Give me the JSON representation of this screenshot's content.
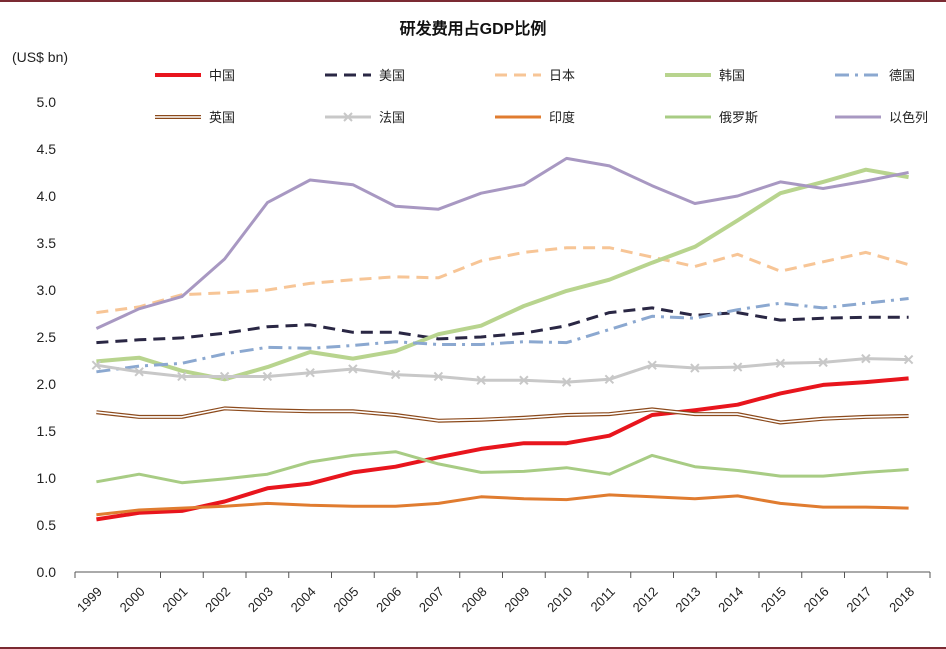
{
  "chart_data": {
    "type": "line",
    "title": "研发费用占GDP比例",
    "ylabel": "(US$ bn)",
    "xlabel": "",
    "ylim": [
      0,
      5
    ],
    "yticks": [
      "0.0",
      "0.5",
      "1.0",
      "1.5",
      "2.0",
      "2.5",
      "3.0",
      "3.5",
      "4.0",
      "4.5",
      "5.0"
    ],
    "categories": [
      "1999",
      "2000",
      "2001",
      "2002",
      "2003",
      "2004",
      "2005",
      "2006",
      "2007",
      "2008",
      "2009",
      "2010",
      "2011",
      "2012",
      "2013",
      "2014",
      "2015",
      "2016",
      "2017",
      "2018"
    ],
    "legend_position": "top",
    "series": [
      {
        "name": "中国",
        "color": "#e8151d",
        "style": "solid-thick",
        "values": [
          0.56,
          0.63,
          0.65,
          0.75,
          0.89,
          0.94,
          1.06,
          1.12,
          1.22,
          1.31,
          1.37,
          1.37,
          1.45,
          1.67,
          1.72,
          1.78,
          1.9,
          1.99,
          2.02,
          2.06
        ]
      },
      {
        "name": "美国",
        "color": "#2a2744",
        "style": "dash",
        "values": [
          2.44,
          2.47,
          2.49,
          2.54,
          2.61,
          2.63,
          2.55,
          2.55,
          2.48,
          2.5,
          2.54,
          2.62,
          2.76,
          2.81,
          2.73,
          2.76,
          2.68,
          2.7,
          2.71,
          2.71
        ]
      },
      {
        "name": "日本",
        "color": "#f7c596",
        "style": "dash",
        "values": [
          2.76,
          2.82,
          2.95,
          2.97,
          3.0,
          3.07,
          3.11,
          3.14,
          3.13,
          3.31,
          3.4,
          3.45,
          3.45,
          3.35,
          3.25,
          3.38,
          3.2,
          3.3,
          3.4,
          3.27
        ]
      },
      {
        "name": "韩国",
        "color": "#b8d48e",
        "style": "solid-thick",
        "values": [
          2.24,
          2.28,
          2.14,
          2.05,
          2.18,
          2.34,
          2.27,
          2.35,
          2.53,
          2.62,
          2.83,
          2.99,
          3.11,
          3.29,
          3.46,
          3.74,
          4.03,
          4.15,
          4.28,
          4.2
        ]
      },
      {
        "name": "德国",
        "color": "#8ba8d0",
        "style": "dashdot",
        "values": [
          2.13,
          2.19,
          2.22,
          2.32,
          2.39,
          2.38,
          2.41,
          2.45,
          2.42,
          2.42,
          2.45,
          2.44,
          2.58,
          2.72,
          2.7,
          2.79,
          2.86,
          2.81,
          2.86,
          2.91
        ]
      },
      {
        "name": "英国",
        "color": "#8c4a1c",
        "style": "double",
        "values": [
          1.7,
          1.65,
          1.65,
          1.74,
          1.72,
          1.71,
          1.71,
          1.67,
          1.61,
          1.62,
          1.64,
          1.67,
          1.68,
          1.73,
          1.68,
          1.68,
          1.59,
          1.63,
          1.65,
          1.66
        ]
      },
      {
        "name": "法国",
        "color": "#c8c8c8",
        "style": "solid-x",
        "values": [
          2.2,
          2.13,
          2.08,
          2.08,
          2.08,
          2.12,
          2.16,
          2.1,
          2.08,
          2.04,
          2.04,
          2.02,
          2.05,
          2.2,
          2.17,
          2.18,
          2.22,
          2.23,
          2.27,
          2.26
        ]
      },
      {
        "name": "印度",
        "color": "#e07c30",
        "style": "solid",
        "values": [
          0.61,
          0.66,
          0.68,
          0.7,
          0.73,
          0.71,
          0.7,
          0.7,
          0.73,
          0.8,
          0.78,
          0.77,
          0.82,
          0.8,
          0.78,
          0.81,
          0.73,
          0.69,
          0.69,
          0.68
        ]
      },
      {
        "name": "俄罗斯",
        "color": "#a8cc84",
        "style": "solid",
        "values": [
          0.96,
          1.04,
          0.95,
          0.99,
          1.04,
          1.17,
          1.24,
          1.28,
          1.15,
          1.06,
          1.07,
          1.11,
          1.04,
          1.24,
          1.12,
          1.08,
          1.02,
          1.02,
          1.06,
          1.09
        ]
      },
      {
        "name": "以色列",
        "color": "#a898c2",
        "style": "solid",
        "values": [
          2.59,
          2.8,
          2.93,
          3.33,
          3.93,
          4.17,
          4.12,
          3.89,
          3.86,
          4.03,
          4.12,
          4.4,
          4.32,
          4.11,
          3.92,
          4.0,
          4.15,
          4.08,
          4.16,
          4.25
        ]
      }
    ]
  }
}
